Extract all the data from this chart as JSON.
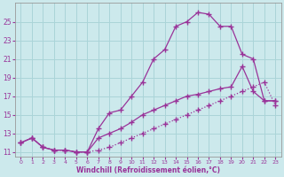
{
  "xlabel": "Windchill (Refroidissement éolien,°C)",
  "background_color": "#cce9ec",
  "grid_color": "#aad4d8",
  "line_color": "#993399",
  "xlim": [
    -0.5,
    23.5
  ],
  "ylim": [
    10.5,
    27.0
  ],
  "xticks": [
    0,
    1,
    2,
    3,
    4,
    5,
    6,
    7,
    8,
    9,
    10,
    11,
    12,
    13,
    14,
    15,
    16,
    17,
    18,
    19,
    20,
    21,
    22,
    23
  ],
  "yticks": [
    11,
    13,
    15,
    17,
    19,
    21,
    23,
    25
  ],
  "line_dotted_x": [
    0,
    1,
    2,
    3,
    4,
    5,
    6,
    7,
    8,
    9,
    10,
    11,
    12,
    13,
    14,
    15,
    16,
    17,
    18,
    19,
    20,
    21,
    22,
    23
  ],
  "line_dotted_y": [
    12.0,
    12.5,
    11.5,
    11.2,
    11.2,
    11.0,
    11.0,
    11.2,
    11.5,
    12.0,
    12.5,
    13.0,
    13.5,
    14.0,
    14.5,
    15.0,
    15.5,
    16.0,
    16.5,
    17.0,
    17.5,
    18.0,
    18.5,
    16.0
  ],
  "line_high_x": [
    0,
    1,
    2,
    3,
    4,
    5,
    6,
    7,
    8,
    9,
    10,
    11,
    12,
    13,
    14,
    15,
    16,
    17,
    18,
    19,
    20,
    21,
    22,
    23
  ],
  "line_high_y": [
    12.0,
    12.5,
    11.5,
    11.2,
    11.2,
    11.0,
    11.0,
    13.5,
    15.2,
    15.5,
    17.0,
    18.5,
    21.0,
    22.0,
    24.5,
    25.0,
    26.0,
    25.8,
    24.5,
    24.5,
    21.5,
    21.0,
    16.5,
    16.5
  ],
  "line_mid_x": [
    0,
    1,
    2,
    3,
    4,
    5,
    6,
    7,
    8,
    9,
    10,
    11,
    12,
    13,
    14,
    15,
    16,
    17,
    18,
    19,
    20,
    21,
    22,
    23
  ],
  "line_mid_y": [
    12.0,
    12.5,
    11.5,
    11.2,
    11.2,
    11.0,
    11.0,
    12.5,
    13.0,
    13.5,
    14.2,
    15.0,
    15.5,
    16.0,
    16.5,
    17.0,
    17.2,
    17.5,
    17.8,
    18.0,
    20.2,
    17.5,
    16.5,
    16.5
  ]
}
